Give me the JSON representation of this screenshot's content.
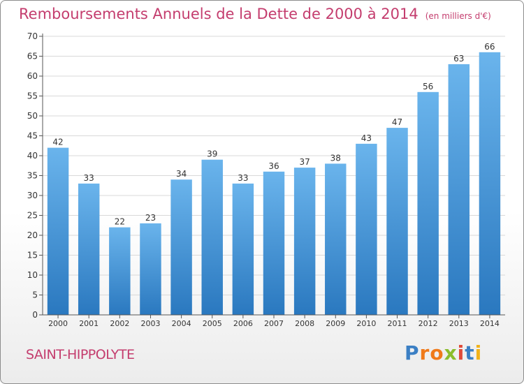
{
  "title": "Remboursements Annuels de la Dette de 2000 à 2014",
  "unit": "(en milliers d'€)",
  "commune": "SAINT-HIPPOLYTE",
  "logo": [
    "P",
    "r",
    "o",
    "x",
    "i",
    "t",
    "i"
  ],
  "colors": {
    "title": "#c43d6e",
    "bar_top": "#6ab4ec",
    "bar_bottom": "#2a78bf",
    "grid": "#d9d9d9"
  },
  "chart_data": {
    "type": "bar",
    "categories": [
      "2000",
      "2001",
      "2002",
      "2003",
      "2004",
      "2005",
      "2006",
      "2007",
      "2008",
      "2009",
      "2010",
      "2011",
      "2012",
      "2013",
      "2014"
    ],
    "values": [
      42,
      33,
      22,
      23,
      34,
      39,
      33,
      36,
      37,
      38,
      43,
      47,
      56,
      63,
      66
    ],
    "yticks": [
      0,
      5,
      10,
      15,
      20,
      25,
      30,
      35,
      40,
      45,
      50,
      55,
      60,
      65,
      70
    ],
    "ylim": [
      0,
      70
    ],
    "grid": true,
    "legend": "none"
  }
}
